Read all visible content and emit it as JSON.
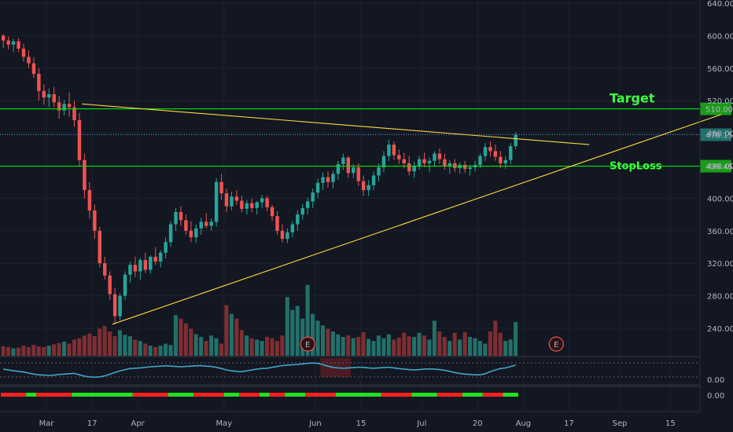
{
  "chart_data": {
    "type": "candlestick",
    "y_ticks": [
      "640.00",
      "600.00",
      "560.00",
      "520.00",
      "480.00",
      "440.00",
      "400.00",
      "360.00",
      "320.00",
      "280.00",
      "240.00"
    ],
    "y_range": [
      200,
      640
    ],
    "x_ticks": [
      "Mar",
      "17",
      "Apr",
      "May",
      "Jun",
      "15",
      "Jul",
      "20",
      "Aug",
      "17",
      "Sep",
      "15"
    ],
    "last_price": "478.15",
    "levels": [
      {
        "name": "Target",
        "label": "Target",
        "price_label": "510.00",
        "value": 510,
        "color": "#00e600",
        "label_bar": 6,
        "label_size": 16
      },
      {
        "name": "StopLoss",
        "label": "StopLoss",
        "price_label": "439.45",
        "value": 439.45,
        "color": "#00e600",
        "label_bar": 6,
        "label_size": 13
      }
    ],
    "trendlines": [
      {
        "name": "descending-resistance",
        "from": [
          16,
          516
        ],
        "to": [
          116,
          466
        ],
        "color": "#ffd740"
      },
      {
        "name": "ascending-support",
        "from": [
          22,
          245
        ],
        "to": [
          142,
          503
        ],
        "color": "#ffd740"
      }
    ],
    "earnings_markers": [
      {
        "label": "E",
        "bar": 60
      },
      {
        "label": "E",
        "bar": 109
      }
    ],
    "ohlc": [
      [
        600,
        602,
        585,
        594
      ],
      [
        594,
        599,
        583,
        589
      ],
      [
        589,
        596,
        580,
        593
      ],
      [
        593,
        597,
        580,
        584
      ],
      [
        584,
        590,
        568,
        574
      ],
      [
        574,
        582,
        560,
        566
      ],
      [
        566,
        573,
        548,
        553
      ],
      [
        553,
        560,
        520,
        532
      ],
      [
        532,
        540,
        515,
        524
      ],
      [
        524,
        535,
        512,
        528
      ],
      [
        528,
        537,
        512,
        518
      ],
      [
        518,
        526,
        498,
        508
      ],
      [
        508,
        521,
        502,
        516
      ],
      [
        516,
        530,
        500,
        512
      ],
      [
        512,
        520,
        488,
        496
      ],
      [
        496,
        505,
        440,
        447
      ],
      [
        447,
        455,
        400,
        410
      ],
      [
        410,
        420,
        375,
        385
      ],
      [
        385,
        392,
        350,
        360
      ],
      [
        360,
        365,
        315,
        320
      ],
      [
        320,
        328,
        300,
        305
      ],
      [
        305,
        310,
        275,
        282
      ],
      [
        282,
        290,
        245,
        255
      ],
      [
        255,
        283,
        250,
        280
      ],
      [
        280,
        310,
        275,
        306
      ],
      [
        306,
        322,
        296,
        318
      ],
      [
        318,
        328,
        303,
        310
      ],
      [
        310,
        327,
        300,
        324
      ],
      [
        324,
        333,
        308,
        312
      ],
      [
        312,
        330,
        307,
        328
      ],
      [
        328,
        340,
        318,
        322
      ],
      [
        322,
        336,
        315,
        333
      ],
      [
        333,
        352,
        326,
        346
      ],
      [
        346,
        372,
        340,
        368
      ],
      [
        368,
        388,
        360,
        383
      ],
      [
        383,
        390,
        366,
        373
      ],
      [
        373,
        380,
        355,
        360
      ],
      [
        360,
        372,
        346,
        352
      ],
      [
        352,
        368,
        345,
        363
      ],
      [
        363,
        376,
        355,
        371
      ],
      [
        371,
        382,
        363,
        366
      ],
      [
        366,
        375,
        360,
        371
      ],
      [
        371,
        425,
        365,
        420
      ],
      [
        420,
        430,
        398,
        406
      ],
      [
        406,
        412,
        383,
        390
      ],
      [
        390,
        408,
        385,
        402
      ],
      [
        402,
        410,
        392,
        397
      ],
      [
        397,
        403,
        383,
        387
      ],
      [
        387,
        398,
        380,
        394
      ],
      [
        394,
        400,
        383,
        388
      ],
      [
        388,
        397,
        380,
        395
      ],
      [
        395,
        404,
        388,
        400
      ],
      [
        400,
        403,
        384,
        389
      ],
      [
        389,
        392,
        372,
        378
      ],
      [
        378,
        384,
        355,
        360
      ],
      [
        360,
        368,
        346,
        350
      ],
      [
        350,
        363,
        345,
        358
      ],
      [
        358,
        372,
        352,
        368
      ],
      [
        368,
        385,
        360,
        380
      ],
      [
        380,
        393,
        374,
        388
      ],
      [
        388,
        401,
        380,
        396
      ],
      [
        396,
        412,
        388,
        407
      ],
      [
        407,
        424,
        400,
        419
      ],
      [
        419,
        432,
        410,
        426
      ],
      [
        426,
        433,
        413,
        420
      ],
      [
        420,
        434,
        412,
        430
      ],
      [
        430,
        446,
        423,
        442
      ],
      [
        442,
        455,
        435,
        450
      ],
      [
        450,
        452,
        425,
        431
      ],
      [
        431,
        442,
        425,
        438
      ],
      [
        438,
        443,
        415,
        421
      ],
      [
        421,
        428,
        403,
        410
      ],
      [
        410,
        422,
        403,
        416
      ],
      [
        416,
        433,
        410,
        428
      ],
      [
        428,
        443,
        421,
        438
      ],
      [
        438,
        458,
        432,
        452
      ],
      [
        452,
        472,
        446,
        466
      ],
      [
        466,
        470,
        447,
        453
      ],
      [
        453,
        460,
        442,
        448
      ],
      [
        448,
        456,
        437,
        443
      ],
      [
        443,
        452,
        428,
        433
      ],
      [
        433,
        445,
        425,
        440
      ],
      [
        440,
        452,
        435,
        448
      ],
      [
        448,
        456,
        438,
        443
      ],
      [
        443,
        450,
        432,
        446
      ],
      [
        446,
        458,
        440,
        455
      ],
      [
        455,
        461,
        442,
        448
      ],
      [
        448,
        455,
        435,
        440
      ],
      [
        440,
        447,
        430,
        443
      ],
      [
        443,
        448,
        432,
        437
      ],
      [
        437,
        444,
        430,
        441
      ],
      [
        441,
        446,
        431,
        436
      ],
      [
        436,
        441,
        428,
        438
      ],
      [
        438,
        446,
        433,
        441
      ],
      [
        441,
        455,
        437,
        452
      ],
      [
        452,
        468,
        446,
        463
      ],
      [
        463,
        470,
        451,
        458
      ],
      [
        458,
        466,
        446,
        451
      ],
      [
        451,
        458,
        437,
        443
      ],
      [
        443,
        452,
        436,
        447
      ],
      [
        447,
        468,
        442,
        464
      ],
      [
        464,
        481,
        460,
        478
      ]
    ],
    "volume": [
      14,
      13,
      11,
      12,
      15,
      13,
      16,
      14,
      13,
      15,
      17,
      19,
      21,
      18,
      24,
      26,
      30,
      33,
      29,
      40,
      44,
      36,
      29,
      38,
      31,
      29,
      24,
      22,
      18,
      15,
      13,
      15,
      18,
      16,
      60,
      55,
      48,
      40,
      32,
      28,
      22,
      30,
      26,
      18,
      75,
      62,
      55,
      38,
      30,
      26,
      24,
      22,
      28,
      26,
      22,
      30,
      87,
      68,
      74,
      55,
      105,
      62,
      52,
      45,
      40,
      36,
      32,
      28,
      30,
      26,
      28,
      35,
      25,
      22,
      30,
      26,
      32,
      24,
      27,
      34,
      29,
      28,
      34,
      30,
      24,
      52,
      36,
      28,
      22,
      34,
      24,
      35,
      28,
      26,
      22,
      18,
      36,
      52,
      34,
      22,
      24,
      50
    ],
    "osc_values": [
      0.55,
      0.5,
      0.45,
      0.42,
      0.38,
      0.32,
      0.26,
      0.22,
      0.2,
      0.18,
      0.2,
      0.24,
      0.26,
      0.28,
      0.3,
      0.22,
      0.14,
      0.1,
      0.08,
      0.1,
      0.16,
      0.25,
      0.35,
      0.45,
      0.52,
      0.58,
      0.6,
      0.62,
      0.65,
      0.68,
      0.7,
      0.72,
      0.74,
      0.72,
      0.7,
      0.68,
      0.7,
      0.72,
      0.74,
      0.75,
      0.72,
      0.7,
      0.65,
      0.58,
      0.5,
      0.45,
      0.42,
      0.4,
      0.45,
      0.5,
      0.55,
      0.58,
      0.6,
      0.65,
      0.7,
      0.75,
      0.78,
      0.8,
      0.82,
      0.85,
      0.88,
      0.9,
      0.88,
      0.8,
      0.72,
      0.65,
      0.62,
      0.6,
      0.62,
      0.64,
      0.66,
      0.65,
      0.62,
      0.6,
      0.62,
      0.64,
      0.66,
      0.62,
      0.58,
      0.55,
      0.52,
      0.5,
      0.52,
      0.55,
      0.56,
      0.55,
      0.52,
      0.48,
      0.42,
      0.35,
      0.3,
      0.26,
      0.24,
      0.22,
      0.22,
      0.28,
      0.4,
      0.5,
      0.58,
      0.62,
      0.7,
      0.78
    ],
    "osc_label": "0.00",
    "strip_label": "0.00",
    "strip_segments": [
      {
        "start": 0,
        "end": 5,
        "state": "red"
      },
      {
        "start": 5,
        "end": 7,
        "state": "green"
      },
      {
        "start": 7,
        "end": 14,
        "state": "red"
      },
      {
        "start": 14,
        "end": 26,
        "state": "green"
      },
      {
        "start": 26,
        "end": 33,
        "state": "red"
      },
      {
        "start": 33,
        "end": 38,
        "state": "green"
      },
      {
        "start": 38,
        "end": 44,
        "state": "red"
      },
      {
        "start": 44,
        "end": 47,
        "state": "green"
      },
      {
        "start": 47,
        "end": 51,
        "state": "red"
      },
      {
        "start": 51,
        "end": 53,
        "state": "green"
      },
      {
        "start": 53,
        "end": 56,
        "state": "red"
      },
      {
        "start": 56,
        "end": 60,
        "state": "green"
      },
      {
        "start": 60,
        "end": 66,
        "state": "red"
      },
      {
        "start": 66,
        "end": 75,
        "state": "green"
      },
      {
        "start": 75,
        "end": 81,
        "state": "red"
      },
      {
        "start": 81,
        "end": 86,
        "state": "green"
      },
      {
        "start": 86,
        "end": 91,
        "state": "red"
      },
      {
        "start": 91,
        "end": 95,
        "state": "green"
      },
      {
        "start": 95,
        "end": 99,
        "state": "red"
      },
      {
        "start": 99,
        "end": 102,
        "state": "green"
      }
    ],
    "colors": {
      "background": "#131722",
      "up": "#26a69a",
      "down": "#ef5350",
      "up_volume": "#22706a",
      "down_volume": "#7f2e33",
      "grid": "#1e2230",
      "oscillator": "#3fa7c7",
      "strip_red": "#ff2020",
      "strip_green": "#22e022",
      "last_price_line": "#4aa3c8",
      "last_price_badge": "#22706a",
      "level_badge": "#1a9b1a",
      "axis_text": "#b2b5be"
    }
  }
}
